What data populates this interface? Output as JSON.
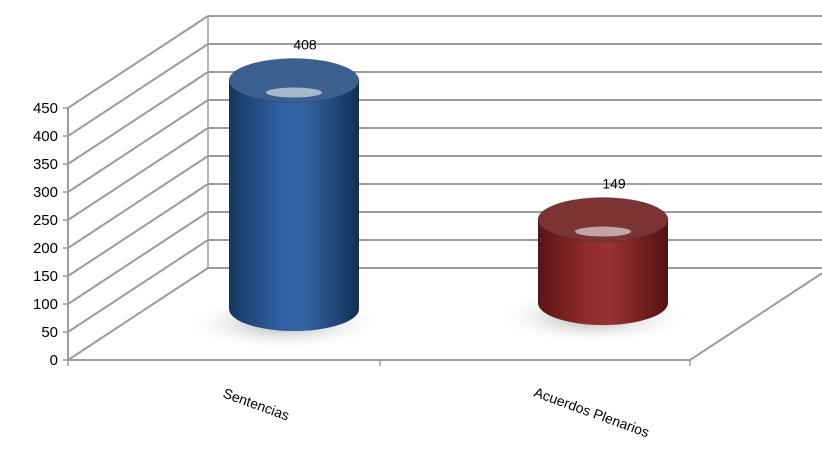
{
  "chart_data": {
    "type": "bar",
    "style": "3d-cylinder",
    "categories": [
      "Sentencias",
      "Acuerdos Plenarios"
    ],
    "values": [
      408,
      149
    ],
    "data_labels": [
      "408",
      "149"
    ],
    "colors": [
      "#1f4e8c",
      "#7a1e1e"
    ],
    "ylim": [
      0,
      450
    ],
    "yticks": [
      0,
      50,
      100,
      150,
      200,
      250,
      300,
      350,
      400,
      450
    ],
    "grid": true,
    "legend": "none",
    "title": "",
    "xlabel": "",
    "ylabel": ""
  }
}
